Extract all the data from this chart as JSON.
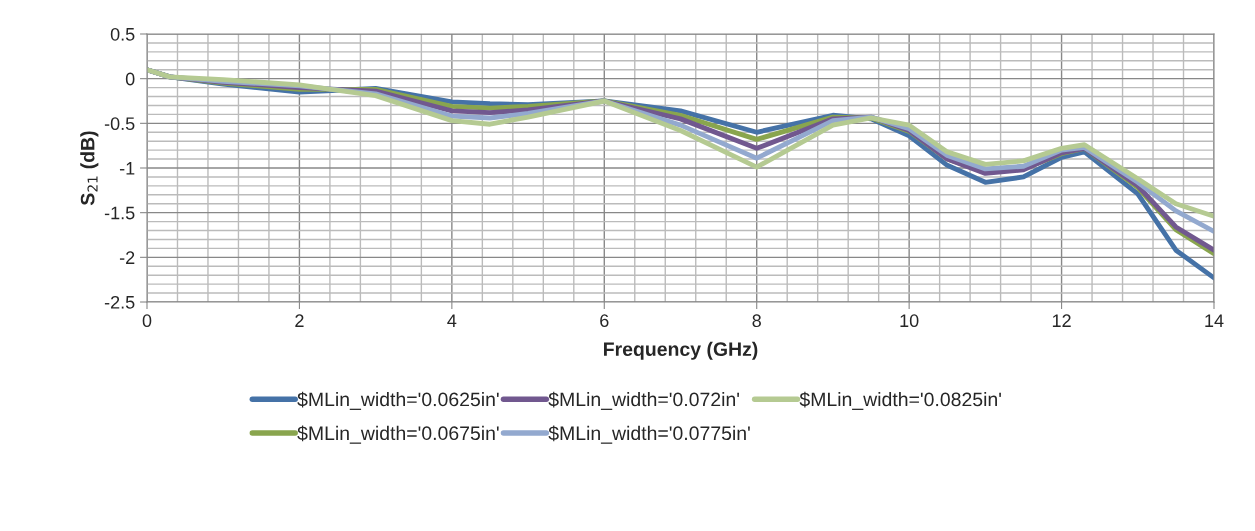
{
  "chart_data": {
    "type": "line",
    "xlabel": "Frequency (GHz)",
    "ylabel": "S$_{21}$ (dB)",
    "x": [
      0,
      0.3,
      1,
      2,
      3,
      4,
      4.5,
      5,
      6,
      7,
      8,
      9,
      9.5,
      10,
      10.5,
      11,
      11.5,
      12,
      12.3,
      13,
      13.5,
      14
    ],
    "series": [
      {
        "name": "$MLin_width='0.0625in'",
        "color": "#4572a7",
        "values": [
          0.1,
          0.02,
          -0.06,
          -0.15,
          -0.11,
          -0.26,
          -0.28,
          -0.29,
          -0.25,
          -0.36,
          -0.6,
          -0.41,
          -0.45,
          -0.64,
          -0.97,
          -1.16,
          -1.1,
          -0.88,
          -0.82,
          -1.29,
          -1.92,
          -2.23
        ]
      },
      {
        "name": "$MLin_width='0.0675in'",
        "color": "#89a54e",
        "values": [
          0.1,
          0.02,
          -0.05,
          -0.12,
          -0.12,
          -0.31,
          -0.33,
          -0.31,
          -0.25,
          -0.41,
          -0.68,
          -0.43,
          -0.44,
          -0.59,
          -0.9,
          -1.05,
          -1.01,
          -0.84,
          -0.78,
          -1.22,
          -1.69,
          -1.96
        ]
      },
      {
        "name": "$MLin_width='0.072in'",
        "color": "#71588f",
        "values": [
          0.1,
          0.02,
          -0.04,
          -0.1,
          -0.14,
          -0.36,
          -0.38,
          -0.35,
          -0.25,
          -0.45,
          -0.78,
          -0.45,
          -0.43,
          -0.58,
          -0.9,
          -1.06,
          -1.02,
          -0.83,
          -0.78,
          -1.2,
          -1.66,
          -1.92
        ]
      },
      {
        "name": "$MLin_width='0.0775in'",
        "color": "#93a9cf",
        "values": [
          0.1,
          0.02,
          -0.03,
          -0.08,
          -0.17,
          -0.42,
          -0.44,
          -0.39,
          -0.25,
          -0.52,
          -0.89,
          -0.47,
          -0.43,
          -0.56,
          -0.86,
          -1.01,
          -0.98,
          -0.8,
          -0.77,
          -1.16,
          -1.48,
          -1.71
        ]
      },
      {
        "name": "$MLin_width='0.0825in'",
        "color": "#b5ca92",
        "values": [
          0.1,
          0.02,
          -0.01,
          -0.07,
          -0.19,
          -0.47,
          -0.51,
          -0.43,
          -0.25,
          -0.58,
          -0.99,
          -0.52,
          -0.44,
          -0.52,
          -0.82,
          -0.96,
          -0.92,
          -0.78,
          -0.74,
          -1.12,
          -1.4,
          -1.54
        ]
      }
    ],
    "xlim": [
      0,
      14
    ],
    "xticks": [
      0,
      2,
      4,
      6,
      8,
      10,
      12,
      14
    ],
    "ylim": [
      -2.5,
      0.5
    ],
    "yticks": [
      -2.5,
      -2,
      -1.5,
      -1,
      -0.5,
      0,
      0.5
    ],
    "grid": true,
    "legend": "bottom",
    "marker": "none",
    "line_style": "solid"
  }
}
